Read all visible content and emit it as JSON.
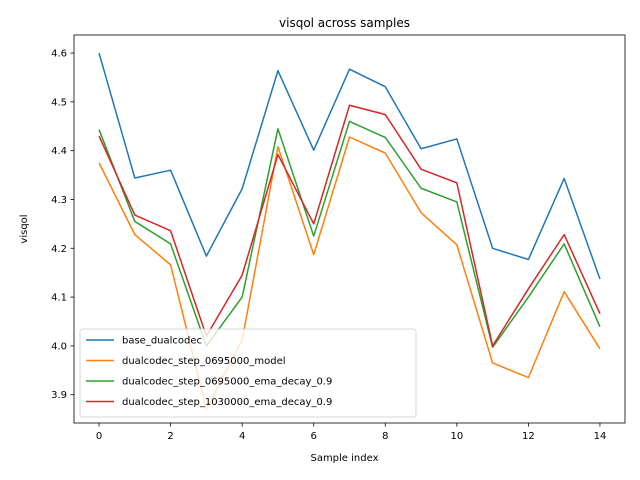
{
  "chart_data": {
    "type": "line",
    "title": "visqol across samples",
    "xlabel": "Sample index",
    "ylabel": "visqol",
    "xlim": [
      -0.7,
      14.7
    ],
    "ylim": [
      3.842,
      4.637
    ],
    "xticks": [
      0,
      2,
      4,
      6,
      8,
      10,
      12,
      14
    ],
    "yticks": [
      3.9,
      4.0,
      4.1,
      4.2,
      4.3,
      4.4,
      4.5,
      4.6
    ],
    "ytick_labels": [
      "3.9",
      "4.0",
      "4.1",
      "4.2",
      "4.3",
      "4.4",
      "4.5",
      "4.6"
    ],
    "grid": false,
    "legend_position": "lower-left",
    "x": [
      0,
      1,
      2,
      3,
      4,
      5,
      6,
      7,
      8,
      9,
      10,
      11,
      12,
      13,
      14
    ],
    "series": [
      {
        "name": "base_dualcodec",
        "color": "#1f77b4",
        "values": [
          4.6,
          4.344,
          4.36,
          4.184,
          4.322,
          4.564,
          4.401,
          4.567,
          4.531,
          4.404,
          4.424,
          4.2,
          4.177,
          4.343,
          4.137
        ]
      },
      {
        "name": "dualcodec_step_0695000_model",
        "color": "#ff7f0e",
        "values": [
          4.375,
          4.228,
          4.166,
          3.87,
          4.012,
          4.408,
          4.187,
          4.428,
          4.395,
          4.273,
          4.207,
          3.965,
          3.935,
          4.111,
          3.994
        ]
      },
      {
        "name": "dualcodec_step_0695000_ema_decay_0.9",
        "color": "#2ca02c",
        "values": [
          4.443,
          4.255,
          4.209,
          4.0,
          4.1,
          4.445,
          4.225,
          4.46,
          4.427,
          4.323,
          4.295,
          3.997,
          4.1,
          4.209,
          4.039
        ]
      },
      {
        "name": "dualcodec_step_1030000_ema_decay_0.9",
        "color": "#d62728",
        "values": [
          4.43,
          4.268,
          4.236,
          4.02,
          4.145,
          4.392,
          4.25,
          4.493,
          4.474,
          4.362,
          4.334,
          4.0,
          4.117,
          4.228,
          4.066
        ]
      }
    ]
  }
}
